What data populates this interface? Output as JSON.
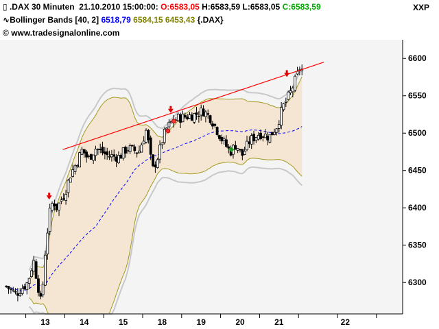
{
  "header": {
    "symbol": ".DAX 30 Minuten",
    "datetime": "21.10.2010 15:00:00:",
    "ohlc_o": "O:6583,05",
    "ohlc_h": "H:6583,59",
    "ohlc_l": "L:6583,05",
    "ohlc_c": "C:6583,59",
    "indicator_name": "Bollinger Bands [40, 2]",
    "indicator_mid": "6518,79",
    "indicator_upper": "6584,15",
    "indicator_lower": "6453,43",
    "indicator_source": "{.DAX}",
    "website": "www.tradesignalonline.com",
    "exchange_label": "XXP"
  },
  "colors": {
    "o_value": "#ff0000",
    "c_value": "#00aa00",
    "indicator_mid": "#0000ff",
    "indicator_bands": "#808000",
    "band_fill": "#f5e6d3",
    "band_line": "#a09a20",
    "envelope": "#c8c8c8",
    "trendline": "#ff0000",
    "moving_avg": "#0000ff",
    "plot_bg": "#f4f4f4"
  },
  "chart_data": {
    "type": "candlestick",
    "y_ticks": [
      "6600",
      "6550",
      "6500",
      "6450",
      "6400",
      "6350",
      "6300"
    ],
    "ylim": [
      6258,
      6625
    ],
    "x_ticks": [
      {
        "label": "13",
        "day": 0
      },
      {
        "label": "14",
        "day": 1
      },
      {
        "label": "15",
        "day": 2
      },
      {
        "label": "18",
        "day": 3
      },
      {
        "label": "19",
        "day": 4
      },
      {
        "label": "20",
        "day": 5
      },
      {
        "label": "21",
        "day": 6
      },
      {
        "label": "22",
        "day": 7.7
      }
    ],
    "bars_per_day": 17,
    "first_bar_day": -1,
    "day_points": [
      [
        -1.0,
        6295
      ],
      [
        -0.75,
        6285
      ],
      [
        -0.45,
        6300
      ],
      [
        -0.3,
        6330
      ],
      [
        -0.1,
        6270
      ],
      [
        0.0,
        6340
      ],
      [
        0.1,
        6390
      ],
      [
        0.2,
        6410
      ],
      [
        0.3,
        6400
      ],
      [
        0.5,
        6420
      ],
      [
        0.65,
        6445
      ],
      [
        0.8,
        6460
      ],
      [
        0.95,
        6478
      ],
      [
        1.1,
        6465
      ],
      [
        1.3,
        6480
      ],
      [
        1.6,
        6470
      ],
      [
        1.9,
        6468
      ],
      [
        2.1,
        6480
      ],
      [
        2.4,
        6475
      ],
      [
        2.6,
        6505
      ],
      [
        2.75,
        6450
      ],
      [
        2.9,
        6470
      ],
      [
        3.0,
        6490
      ],
      [
        3.1,
        6505
      ],
      [
        3.25,
        6515
      ],
      [
        3.4,
        6520
      ],
      [
        3.6,
        6522
      ],
      [
        3.85,
        6525
      ],
      [
        4.05,
        6530
      ],
      [
        4.25,
        6520
      ],
      [
        4.4,
        6505
      ],
      [
        4.55,
        6490
      ],
      [
        4.75,
        6475
      ],
      [
        4.9,
        6485
      ],
      [
        5.05,
        6470
      ],
      [
        5.25,
        6490
      ],
      [
        5.5,
        6500
      ],
      [
        5.75,
        6495
      ],
      [
        5.95,
        6510
      ],
      [
        6.1,
        6535
      ],
      [
        6.3,
        6555
      ],
      [
        6.45,
        6575
      ],
      [
        6.55,
        6590
      ],
      [
        6.6,
        6583
      ]
    ],
    "trendline": {
      "start": [
        0.45,
        6478
      ],
      "end": [
        7.15,
        6595
      ]
    },
    "markers": [
      {
        "type": "red-down-arrow",
        "day": 0.1,
        "value": 6412
      },
      {
        "type": "red-down-arrow",
        "day": 3.22,
        "value": 6528
      },
      {
        "type": "red-down-arrow",
        "day": 6.2,
        "value": 6576
      },
      {
        "type": "red-circle",
        "day": 3.15,
        "value": 6503
      },
      {
        "type": "red-circle",
        "day": 3.3,
        "value": 6516
      },
      {
        "type": "green-diamond",
        "day": 4.78,
        "value": 6478
      }
    ]
  }
}
